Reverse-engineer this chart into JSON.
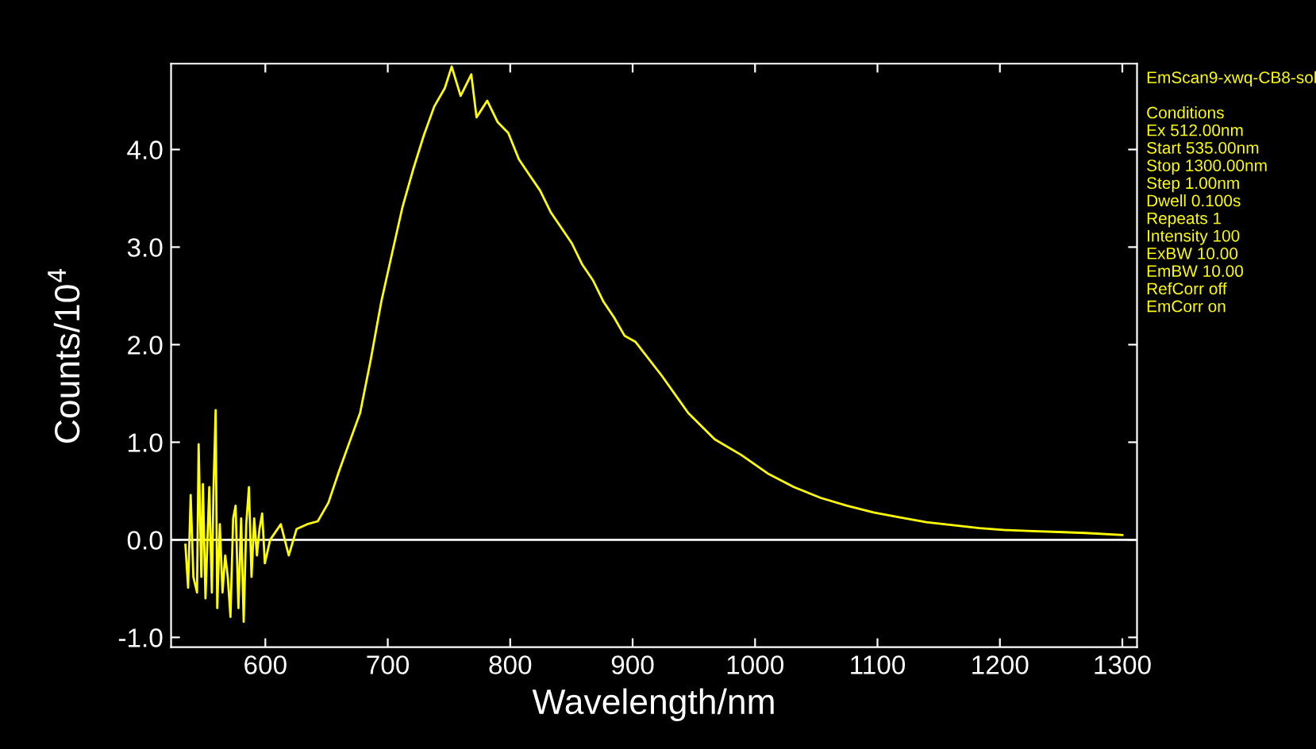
{
  "chart_data": {
    "type": "line",
    "xlabel": "Wavelength/nm",
    "ylabel": "Counts/10$^{4}$",
    "xlim": [
      523,
      1312
    ],
    "ylim": [
      -1.1,
      4.88
    ],
    "xticks": [
      600,
      700,
      800,
      900,
      1000,
      1100,
      1200,
      1300
    ],
    "yticks": [
      {
        "value": -1,
        "label": "-1.0"
      },
      {
        "value": 0,
        "label": "0.0"
      },
      {
        "value": 1,
        "label": "1.0"
      },
      {
        "value": 2,
        "label": "2.0"
      },
      {
        "value": 3,
        "label": "3.0"
      },
      {
        "value": 4,
        "label": "4.0"
      }
    ],
    "grid": false,
    "legend": false,
    "marker": "none",
    "line_style": "solid",
    "ref_lines": [
      {
        "axis": "y",
        "value": 0,
        "color": "#ffffff"
      }
    ],
    "annotations": [
      "EmScan9-xwq-CB8-sol",
      "Conditions",
      "Ex 512.00nm",
      "Start 535.00nm",
      "Stop 1300.00nm",
      "Step 1.00nm",
      "Dwell 0.100s",
      "Repeats 1",
      "Intensity 100",
      "ExBW 10.00",
      "EmBW 10.00",
      "RefCorr off",
      "EmCorr on"
    ],
    "series": [
      {
        "color": "#ffff00",
        "x": [
          534.7,
          536.9,
          539.0,
          541.2,
          544.2,
          545.5,
          547.7,
          549.0,
          551.1,
          554.2,
          556.3,
          557.6,
          559.4,
          560.7,
          562.8,
          565.0,
          567.2,
          569.3,
          571.5,
          573.7,
          575.7,
          578.0,
          580.2,
          582.3,
          584.4,
          586.6,
          588.7,
          590.9,
          593.1,
          595.2,
          597.4,
          599.6,
          603.9,
          612.6,
          619.1,
          625.5,
          634.2,
          642.8,
          651.5,
          660.1,
          668.7,
          677.4,
          686.0,
          694.7,
          703.4,
          712.0,
          720.6,
          729.3,
          737.9,
          746.6,
          752.2,
          759.5,
          768.2,
          772.5,
          781.2,
          789.8,
          798.4,
          807.1,
          815.7,
          824.4,
          833.0,
          841.6,
          850.3,
          858.9,
          867.6,
          876.2,
          884.8,
          893.5,
          902.2,
          923.9,
          945.4,
          967.1,
          988.7,
          1010.3,
          1031.9,
          1053.6,
          1075.1,
          1096.8,
          1118.4,
          1139.9,
          1161.6,
          1183.3,
          1204.8,
          1226.5,
          1248.1,
          1269.7,
          1300
        ],
        "values": [
          -0.05,
          -0.49,
          0.46,
          -0.38,
          -0.54,
          0.98,
          -0.38,
          0.57,
          -0.6,
          0.54,
          -0.54,
          0.49,
          1.33,
          -0.7,
          0.16,
          -0.54,
          -0.16,
          -0.38,
          -0.79,
          0.22,
          0.35,
          -0.7,
          0.22,
          -0.84,
          0.16,
          0.54,
          -0.38,
          0.22,
          -0.16,
          0.11,
          0.27,
          -0.24,
          0.0,
          0.16,
          -0.16,
          0.11,
          0.16,
          0.19,
          0.38,
          0.7,
          1.0,
          1.3,
          1.84,
          2.44,
          2.93,
          3.41,
          3.79,
          4.14,
          4.44,
          4.63,
          4.85,
          4.55,
          4.77,
          4.33,
          4.5,
          4.28,
          4.17,
          3.9,
          3.74,
          3.58,
          3.36,
          3.2,
          3.04,
          2.82,
          2.66,
          2.44,
          2.28,
          2.09,
          2.03,
          1.68,
          1.3,
          1.03,
          0.87,
          0.68,
          0.54,
          0.43,
          0.35,
          0.28,
          0.23,
          0.18,
          0.15,
          0.12,
          0.1,
          0.09,
          0.08,
          0.07,
          0.05
        ]
      }
    ]
  }
}
